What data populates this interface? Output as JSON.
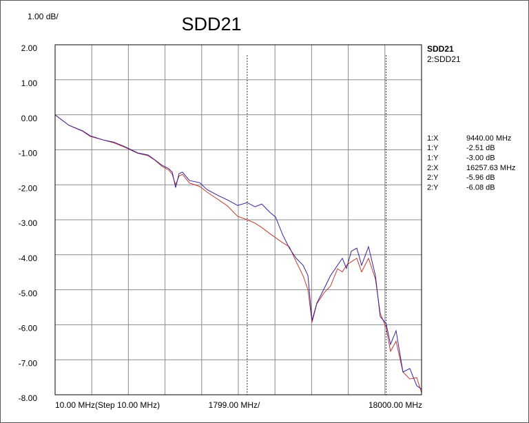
{
  "chart_data": {
    "type": "line",
    "title": "SDD21",
    "y_division": {
      "value": 1,
      "label": "1.00 dB/"
    },
    "x_division": {
      "value": 1799,
      "label": "1799.00 MHz/"
    },
    "xlim": [
      10,
      18000
    ],
    "xticks": [
      {
        "value": 10,
        "label": "10.00 MHz(Step 10.00 MHz)"
      },
      {
        "value": 18000,
        "label": "18000.00 MHz"
      }
    ],
    "ylim": [
      -8,
      2
    ],
    "yticks": [
      {
        "value": 2,
        "label": "2.00"
      },
      {
        "value": 1,
        "label": "1.00"
      },
      {
        "value": 0,
        "label": "0.00"
      },
      {
        "value": -1,
        "label": "-1.00"
      },
      {
        "value": -2,
        "label": "-2.00"
      },
      {
        "value": -3,
        "label": "-3.00"
      },
      {
        "value": -4,
        "label": "-4.00"
      },
      {
        "value": -5,
        "label": "-5.00"
      },
      {
        "value": -6,
        "label": "-6.00"
      },
      {
        "value": -7,
        "label": "-7.00"
      },
      {
        "value": -8,
        "label": "-8.00"
      }
    ],
    "grid": true,
    "x": [
      10,
      686,
      1363,
      1735,
      2377,
      2884,
      3392,
      4068,
      4575,
      4913,
      5251,
      5590,
      5759,
      5928,
      6097,
      6266,
      6604,
      7111,
      7450,
      7957,
      8464,
      8971,
      9440,
      9830,
      10155,
      10561,
      10831,
      11169,
      11507,
      11846,
      12184,
      12421,
      12624,
      12860,
      13198,
      13536,
      13875,
      14111,
      14314,
      14551,
      14821,
      15058,
      15396,
      15734,
      15971,
      16258,
      16478,
      16749,
      17087,
      17425,
      17763,
      18000
    ],
    "series": [
      {
        "name": "SDD21",
        "color": "#3a1f9c",
        "values": [
          0,
          -0.3,
          -0.46,
          -0.6,
          -0.72,
          -0.78,
          -0.9,
          -1.09,
          -1.15,
          -1.29,
          -1.44,
          -1.54,
          -1.64,
          -2.08,
          -1.68,
          -1.64,
          -1.88,
          -1.94,
          -2.13,
          -2.29,
          -2.43,
          -2.59,
          -2.51,
          -2.63,
          -2.55,
          -2.79,
          -2.92,
          -3.41,
          -3.81,
          -4.1,
          -4.3,
          -4.59,
          -5.88,
          -5.38,
          -4.99,
          -4.59,
          -4.3,
          -4.1,
          -4.39,
          -3.9,
          -3.81,
          -4.3,
          -3.77,
          -4.59,
          -5.77,
          -5.96,
          -6.56,
          -6.17,
          -7.35,
          -7.25,
          -7.74,
          -7.84
        ]
      },
      {
        "name": "2:SDD21",
        "color": "#c0392b",
        "values": [
          0,
          -0.3,
          -0.47,
          -0.62,
          -0.72,
          -0.8,
          -0.92,
          -1.1,
          -1.17,
          -1.3,
          -1.47,
          -1.58,
          -1.7,
          -2.0,
          -1.75,
          -1.7,
          -1.95,
          -2.05,
          -2.2,
          -2.4,
          -2.6,
          -2.9,
          -3.0,
          -3.1,
          -3.22,
          -3.4,
          -3.51,
          -3.65,
          -3.77,
          -4.2,
          -4.6,
          -4.99,
          -5.93,
          -5.4,
          -5.1,
          -4.89,
          -4.4,
          -4.49,
          -4.3,
          -4.2,
          -4.1,
          -4.49,
          -4.1,
          -4.69,
          -5.67,
          -6.08,
          -6.76,
          -6.47,
          -7.35,
          -7.55,
          -7.51,
          -7.94
        ]
      }
    ],
    "markers": [
      {
        "label": "1:X",
        "x": 9440,
        "value_label": "9440.00 MHz",
        "color": "#a04848"
      },
      {
        "label": "2:X",
        "x": 16257.63,
        "value_label": "16257.63 MHz",
        "color": "#a04848"
      }
    ],
    "readouts": [
      {
        "label": "1:X",
        "value": 9440,
        "value_label": "9440.00 MHz",
        "color": "#a04848"
      },
      {
        "label": "1:Y",
        "value": -2.51,
        "value_label": "-2.51 dB",
        "color": "#3a1f9c"
      },
      {
        "label": "1:Y",
        "value": -3.0,
        "value_label": "-3.00 dB",
        "color": "#c0392b"
      },
      {
        "label": "2:X",
        "value": 16257.63,
        "value_label": "16257.63 MHz",
        "color": "#a04848"
      },
      {
        "label": "2:Y",
        "value": -5.96,
        "value_label": "-5.96 dB",
        "color": "#3a1f9c"
      },
      {
        "label": "2:Y",
        "value": -6.08,
        "value_label": "-6.08 dB",
        "color": "#c0392b"
      }
    ]
  }
}
